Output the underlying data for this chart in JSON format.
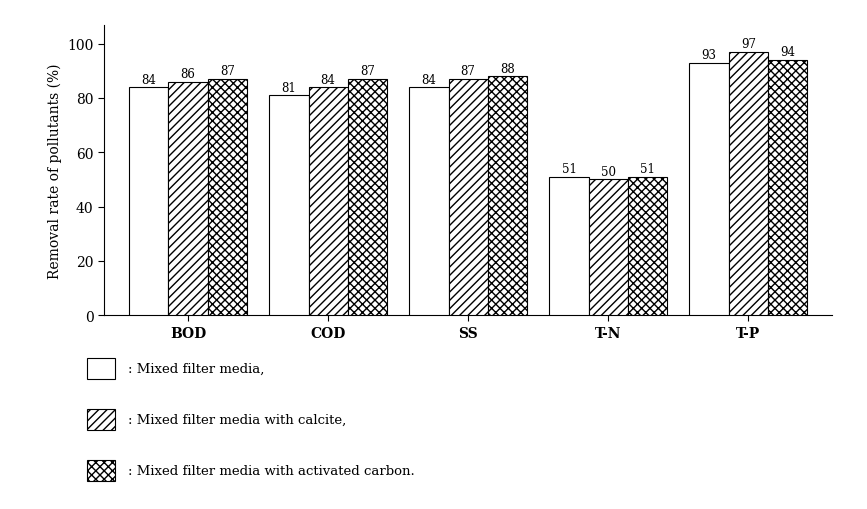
{
  "categories": [
    "BOD",
    "COD",
    "SS",
    "T-N",
    "T-P"
  ],
  "series": {
    "Mixed filter media": [
      84,
      81,
      84,
      51,
      93
    ],
    "Mixed filter media with calcite": [
      86,
      84,
      87,
      50,
      97
    ],
    "Mixed filter media with activated carbon": [
      87,
      87,
      88,
      51,
      94
    ]
  },
  "ylabel": "Removal rate of pollutants (%)",
  "ylim": [
    0,
    107
  ],
  "yticks": [
    0,
    20,
    40,
    60,
    80,
    100
  ],
  "legend_labels": [
    ": Mixed filter media,",
    ": Mixed filter media with calcite,",
    ": Mixed filter media with activated carbon."
  ],
  "bar_width": 0.28,
  "tick_fontsize": 10,
  "ylabel_fontsize": 10,
  "value_fontsize": 8.5,
  "background_color": "#ffffff"
}
